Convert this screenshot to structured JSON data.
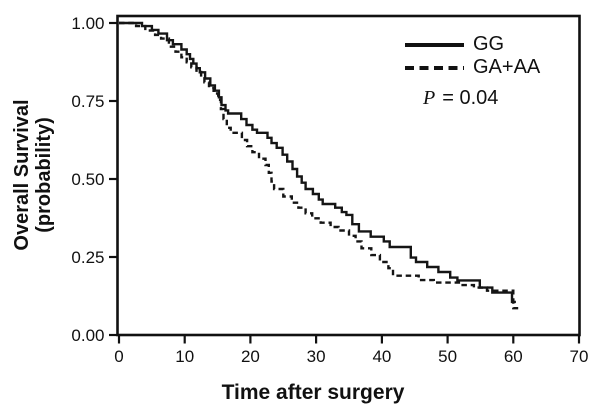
{
  "figure": {
    "y_axis_label_line1": "Overall Survival",
    "y_axis_label_line2": "(probability)",
    "x_axis_label": "Time after surgery",
    "p_symbol": "P",
    "p_rest": "=  0.04"
  },
  "chart_data": {
    "type": "line",
    "subtype": "kaplan-meier-step",
    "title": "",
    "xlabel": "Time after surgery",
    "ylabel": "Overall Survival (probability)",
    "xlim": [
      0,
      70
    ],
    "ylim": [
      0.0,
      1.0
    ],
    "x_ticks": [
      0,
      10,
      20,
      30,
      40,
      50,
      60,
      70
    ],
    "y_ticks": [
      {
        "value": 0.0,
        "label": "0.00"
      },
      {
        "value": 0.25,
        "label": "0.25"
      },
      {
        "value": 0.5,
        "label": "0.50"
      },
      {
        "value": 0.75,
        "label": "0.75"
      },
      {
        "value": 1.0,
        "label": "1.00"
      }
    ],
    "grid": false,
    "frame": "full-box",
    "annotation": "P = 0.04",
    "line_color": "#151515",
    "legend": {
      "position": "top-right",
      "entries": [
        {
          "name": "GG",
          "style": "solid"
        },
        {
          "name": "GA+AA",
          "style": "dashed"
        }
      ]
    },
    "series": [
      {
        "name": "GG",
        "line": "solid",
        "color": "#151515",
        "steps": [
          [
            0,
            1.0
          ],
          [
            3.5,
            0.99
          ],
          [
            5.0,
            0.978
          ],
          [
            6.0,
            0.966
          ],
          [
            7.3,
            0.945
          ],
          [
            8.2,
            0.932
          ],
          [
            9.5,
            0.915
          ],
          [
            10.3,
            0.9
          ],
          [
            10.8,
            0.885
          ],
          [
            11.3,
            0.87
          ],
          [
            11.8,
            0.855
          ],
          [
            12.3,
            0.842
          ],
          [
            13.1,
            0.822
          ],
          [
            13.9,
            0.8
          ],
          [
            14.6,
            0.783
          ],
          [
            15.2,
            0.762
          ],
          [
            15.6,
            0.737
          ],
          [
            16.2,
            0.72
          ],
          [
            16.6,
            0.71
          ],
          [
            18.6,
            0.692
          ],
          [
            19.4,
            0.673
          ],
          [
            20.3,
            0.658
          ],
          [
            21.0,
            0.648
          ],
          [
            22.6,
            0.632
          ],
          [
            23.2,
            0.615
          ],
          [
            24.0,
            0.6
          ],
          [
            24.9,
            0.578
          ],
          [
            25.6,
            0.556
          ],
          [
            26.4,
            0.532
          ],
          [
            27.1,
            0.508
          ],
          [
            27.8,
            0.488
          ],
          [
            28.4,
            0.468
          ],
          [
            29.5,
            0.452
          ],
          [
            30.4,
            0.434
          ],
          [
            31.0,
            0.42
          ],
          [
            32.9,
            0.408
          ],
          [
            33.9,
            0.394
          ],
          [
            34.6,
            0.385
          ],
          [
            35.5,
            0.355
          ],
          [
            36.5,
            0.332
          ],
          [
            38.3,
            0.315
          ],
          [
            40.3,
            0.3
          ],
          [
            41.2,
            0.282
          ],
          [
            44.4,
            0.248
          ],
          [
            45.2,
            0.234
          ],
          [
            46.9,
            0.218
          ],
          [
            48.6,
            0.202
          ],
          [
            50.4,
            0.184
          ],
          [
            51.5,
            0.175
          ],
          [
            54.9,
            0.152
          ],
          [
            56.8,
            0.136
          ],
          [
            59.8,
            0.106
          ],
          [
            60.4,
            0.106
          ]
        ]
      },
      {
        "name": "GA+AA",
        "line": "dashed",
        "color": "#151515",
        "steps": [
          [
            0,
            1.0
          ],
          [
            2.6,
            0.99
          ],
          [
            4.0,
            0.976
          ],
          [
            5.5,
            0.962
          ],
          [
            6.4,
            0.95
          ],
          [
            7.6,
            0.924
          ],
          [
            8.6,
            0.908
          ],
          [
            9.5,
            0.89
          ],
          [
            10.3,
            0.874
          ],
          [
            11.0,
            0.858
          ],
          [
            11.8,
            0.843
          ],
          [
            12.5,
            0.828
          ],
          [
            13.0,
            0.81
          ],
          [
            13.7,
            0.792
          ],
          [
            14.4,
            0.774
          ],
          [
            15.1,
            0.754
          ],
          [
            15.5,
            0.724
          ],
          [
            15.9,
            0.692
          ],
          [
            16.4,
            0.664
          ],
          [
            17.0,
            0.648
          ],
          [
            18.7,
            0.625
          ],
          [
            19.5,
            0.605
          ],
          [
            20.3,
            0.586
          ],
          [
            21.3,
            0.565
          ],
          [
            22.3,
            0.545
          ],
          [
            22.8,
            0.52
          ],
          [
            23.2,
            0.492
          ],
          [
            23.6,
            0.468
          ],
          [
            25.0,
            0.444
          ],
          [
            26.3,
            0.424
          ],
          [
            27.3,
            0.408
          ],
          [
            28.4,
            0.39
          ],
          [
            29.4,
            0.374
          ],
          [
            30.7,
            0.36
          ],
          [
            32.2,
            0.346
          ],
          [
            33.4,
            0.335
          ],
          [
            35.0,
            0.318
          ],
          [
            36.0,
            0.3
          ],
          [
            36.9,
            0.278
          ],
          [
            38.4,
            0.256
          ],
          [
            39.7,
            0.234
          ],
          [
            41.0,
            0.214
          ],
          [
            41.7,
            0.19
          ],
          [
            45.6,
            0.176
          ],
          [
            47.9,
            0.168
          ],
          [
            52.0,
            0.16
          ],
          [
            54.0,
            0.152
          ],
          [
            56.0,
            0.142
          ],
          [
            60.0,
            0.086
          ],
          [
            61.0,
            0.086
          ]
        ]
      }
    ]
  }
}
